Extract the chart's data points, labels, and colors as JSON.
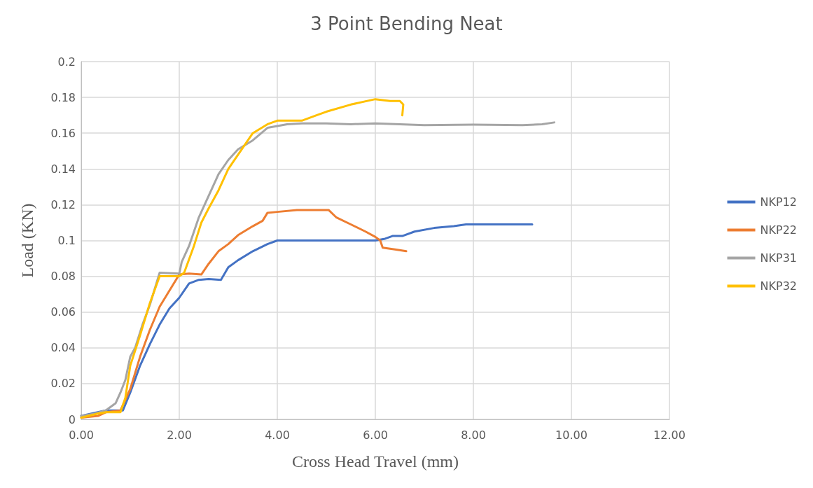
{
  "chart_data": {
    "type": "line",
    "title": "3 Point Bending Neat",
    "xlabel": "Cross Head Travel (mm)",
    "ylabel": "Load (KN)",
    "xlim": [
      0,
      12
    ],
    "xticks": [
      {
        "value": 0,
        "label": "0.00"
      },
      {
        "value": 2,
        "label": "2.00"
      },
      {
        "value": 4,
        "label": "4.00"
      },
      {
        "value": 6,
        "label": "6.00"
      },
      {
        "value": 8,
        "label": "8.00"
      },
      {
        "value": 10,
        "label": "10.00"
      },
      {
        "value": 12,
        "label": "12.00"
      }
    ],
    "ylim": [
      0,
      0.2
    ],
    "yticks": [
      0,
      0.02,
      0.04,
      0.06,
      0.08,
      0.1,
      0.12,
      0.14,
      0.16,
      0.18,
      0.2
    ],
    "grid": true,
    "legend": "right",
    "marker": "none",
    "line_style": "solid",
    "series": [
      {
        "name": "NKP12",
        "color": "#4472c4",
        "x": [
          0,
          0.3,
          0.5,
          0.85,
          1.0,
          1.2,
          1.4,
          1.6,
          1.8,
          2.0,
          2.2,
          2.4,
          2.6,
          2.85,
          3.0,
          3.2,
          3.5,
          3.8,
          4.0,
          5.0,
          6.0,
          6.2,
          6.35,
          6.55,
          6.8,
          7.2,
          7.6,
          7.85,
          8.5,
          9.2
        ],
        "values": [
          0.002,
          null,
          0.005,
          0.005,
          0.015,
          0.03,
          0.042,
          0.053,
          0.062,
          0.068,
          0.076,
          0.078,
          0.0785,
          0.078,
          0.085,
          0.089,
          0.094,
          0.098,
          0.1,
          0.1,
          0.1,
          0.101,
          0.1025,
          0.1025,
          0.105,
          0.107,
          0.108,
          0.109,
          0.109,
          0.109
        ]
      },
      {
        "name": "NKP22",
        "color": "#ed7d31",
        "x": [
          0,
          0.35,
          0.5,
          0.8,
          1.0,
          1.2,
          1.4,
          1.6,
          1.8,
          2.0,
          2.2,
          2.45,
          2.6,
          2.8,
          3.0,
          3.2,
          3.5,
          3.7,
          3.8,
          4.0,
          4.4,
          4.8,
          5.05,
          5.2,
          5.5,
          5.8,
          6.0,
          6.1,
          6.15,
          6.4,
          6.63
        ],
        "values": [
          0.001,
          0.002,
          0.004,
          0.005,
          0.017,
          0.035,
          0.05,
          0.063,
          0.072,
          0.081,
          0.0815,
          0.081,
          0.087,
          0.094,
          0.098,
          0.103,
          0.108,
          0.111,
          0.1155,
          0.116,
          0.117,
          0.117,
          0.117,
          0.113,
          0.109,
          0.105,
          0.102,
          0.1,
          0.096,
          0.095,
          0.094
        ]
      },
      {
        "name": "NKP31",
        "color": "#a5a5a5",
        "x": [
          0,
          0.25,
          0.5,
          0.7,
          0.8,
          0.9,
          1.0,
          1.1,
          1.25,
          1.4,
          1.6,
          2.0,
          2.05,
          2.2,
          2.4,
          2.6,
          2.8,
          3.0,
          3.2,
          3.5,
          3.8,
          4.0,
          4.2,
          4.5,
          5.0,
          5.5,
          6.0,
          7.0,
          8.0,
          9.0,
          9.4,
          9.65
        ],
        "values": [
          0.002,
          0.003,
          0.005,
          0.009,
          0.015,
          0.022,
          0.035,
          0.04,
          0.053,
          0.064,
          0.082,
          0.0815,
          0.088,
          0.097,
          0.113,
          0.125,
          0.137,
          0.145,
          0.151,
          0.156,
          0.163,
          0.164,
          0.165,
          0.1655,
          0.1655,
          0.165,
          0.1655,
          0.1645,
          0.1648,
          0.1645,
          0.165,
          0.166
        ]
      },
      {
        "name": "NKP32",
        "color": "#ffc000",
        "x": [
          0,
          0.3,
          0.5,
          0.8,
          0.9,
          1.0,
          1.2,
          1.4,
          1.6,
          2.0,
          2.1,
          2.3,
          2.45,
          2.6,
          2.8,
          3.0,
          3.2,
          3.5,
          3.8,
          4.0,
          4.5,
          4.8,
          5.0,
          5.5,
          6.0,
          6.3,
          6.5,
          6.57,
          6.55
        ],
        "values": [
          0.001,
          0.003,
          0.004,
          0.004,
          0.012,
          0.03,
          0.047,
          0.065,
          0.08,
          0.08,
          0.082,
          0.097,
          0.11,
          0.118,
          0.128,
          0.14,
          0.148,
          0.16,
          0.165,
          0.167,
          0.167,
          0.17,
          0.172,
          0.176,
          0.179,
          0.178,
          0.178,
          0.176,
          0.17
        ]
      }
    ]
  }
}
